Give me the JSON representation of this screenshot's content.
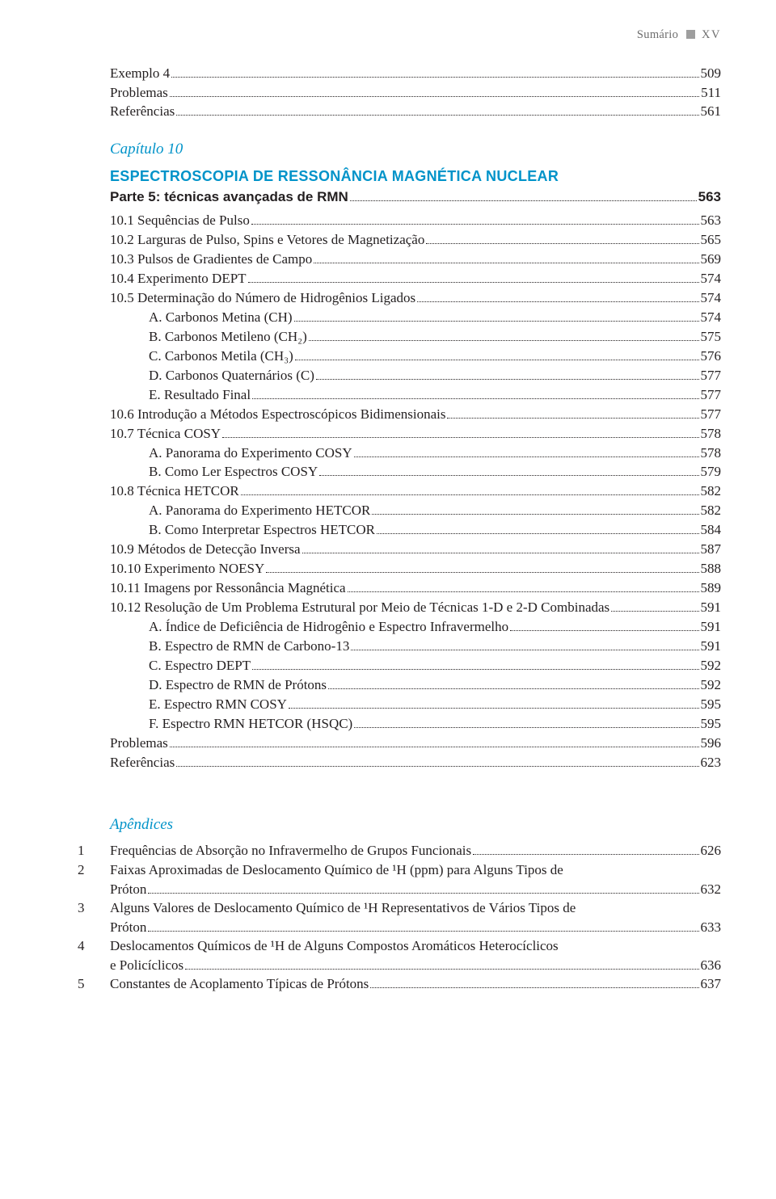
{
  "header": {
    "label": "Sumário",
    "page": "XV"
  },
  "pre_toc": [
    {
      "label": "Exemplo 4",
      "page": "509",
      "lvl": 1
    },
    {
      "label": "Problemas",
      "page": "511",
      "lvl": 0
    },
    {
      "label": "Referências",
      "page": "561",
      "lvl": 0
    }
  ],
  "chapter": {
    "label": "Capítulo 10"
  },
  "section_heading": "ESPECTROSCOPIA DE RESSONÂNCIA MAGNÉTICA NUCLEAR",
  "subheading": {
    "label": "Parte 5: técnicas avançadas de RMN",
    "page": "563"
  },
  "toc": [
    {
      "label": "10.1 Sequências de Pulso",
      "page": "563",
      "lvl": 0
    },
    {
      "label": "10.2 Larguras de Pulso, Spins e Vetores de Magnetização",
      "page": "565",
      "lvl": 0
    },
    {
      "label": "10.3 Pulsos de Gradientes de Campo",
      "page": "569",
      "lvl": 0
    },
    {
      "label": "10.4 Experimento DEPT",
      "page": "574",
      "lvl": 0
    },
    {
      "label": "10.5 Determinação do Número de Hidrogênios Ligados",
      "page": " 574",
      "lvl": 0
    },
    {
      "label": "A. Carbonos Metina (CH)",
      "page": "574",
      "lvl": 2
    },
    {
      "label": "B. Carbonos Metileno (CH₂)",
      "page": "575",
      "lvl": 2
    },
    {
      "label": "C. Carbonos Metila (CH₃)",
      "page": "576",
      "lvl": 2
    },
    {
      "label": "D. Carbonos Quaternários (C)",
      "page": "577",
      "lvl": 2
    },
    {
      "label": "E. Resultado Final",
      "page": "577",
      "lvl": 2
    },
    {
      "label": "10.6 Introdução a Métodos Espectroscópicos Bidimensionais",
      "page": "577",
      "lvl": 0
    },
    {
      "label": "10.7 Técnica COSY",
      "page": "578",
      "lvl": 0
    },
    {
      "label": "A. Panorama do Experimento COSY",
      "page": "578",
      "lvl": 2
    },
    {
      "label": "B. Como Ler Espectros COSY",
      "page": "579",
      "lvl": 2
    },
    {
      "label": "10.8 Técnica HETCOR",
      "page": "582",
      "lvl": 0
    },
    {
      "label": "A. Panorama do Experimento HETCOR",
      "page": "582",
      "lvl": 2
    },
    {
      "label": "B. Como Interpretar Espectros HETCOR",
      "page": "584",
      "lvl": 2
    },
    {
      "label": "10.9 Métodos de Detecção Inversa",
      "page": "587",
      "lvl": 0
    },
    {
      "label": "10.10 Experimento NOESY",
      "page": "588",
      "lvl": 0
    },
    {
      "label": "10.11 Imagens por Ressonância Magnética",
      "page": "589",
      "lvl": 0
    },
    {
      "label": "10.12 Resolução de Um Problema Estrutural por Meio de Técnicas 1-D e 2-D Combinadas",
      "page": "591",
      "lvl": 0
    },
    {
      "label": "A. Índice de Deficiência de Hidrogênio e Espectro Infravermelho",
      "page": "591",
      "lvl": 2
    },
    {
      "label": "B. Espectro de RMN de Carbono-13",
      "page": "591",
      "lvl": 2
    },
    {
      "label": "C. Espectro DEPT",
      "page": "592",
      "lvl": 2
    },
    {
      "label": "D. Espectro de RMN de Prótons",
      "page": "592",
      "lvl": 2
    },
    {
      "label": "E. Espectro RMN COSY",
      "page": "595",
      "lvl": 2
    },
    {
      "label": "F.  Espectro RMN HETCOR (HSQC)",
      "page": "595",
      "lvl": 2
    },
    {
      "label": "Problemas",
      "page": "596",
      "lvl": 0
    },
    {
      "label": "Referências",
      "page": "623",
      "lvl": 0
    }
  ],
  "appendix_title": "Apêndices",
  "appendices": [
    {
      "num": "1",
      "lines": [
        "Frequências de Absorção no Infravermelho de Grupos Funcionais"
      ],
      "page": "626"
    },
    {
      "num": "2",
      "lines": [
        "Faixas Aproximadas de Deslocamento Químico de ¹H (ppm) para Alguns Tipos de",
        "Próton"
      ],
      "page": "632"
    },
    {
      "num": "3",
      "lines": [
        "Alguns Valores de Deslocamento Químico de ¹H Representativos de Vários Tipos de",
        "Próton"
      ],
      "page": "633"
    },
    {
      "num": "4",
      "lines": [
        "Deslocamentos Químicos de ¹H de Alguns Compostos Aromáticos Heterocíclicos",
        "e Policíclicos"
      ],
      "page": "636"
    },
    {
      "num": "5",
      "lines": [
        "Constantes de Acoplamento Típicas de Prótons"
      ],
      "page": "637"
    }
  ],
  "colors": {
    "accent": "#0093c9",
    "text": "#231f20",
    "header_gray": "#6d6d6d",
    "background": "#ffffff"
  },
  "typography": {
    "body_fontsize_pt": 12,
    "heading_fontsize_pt": 13,
    "chapter_fontsize_pt": 13,
    "header_fontsize_pt": 10
  }
}
